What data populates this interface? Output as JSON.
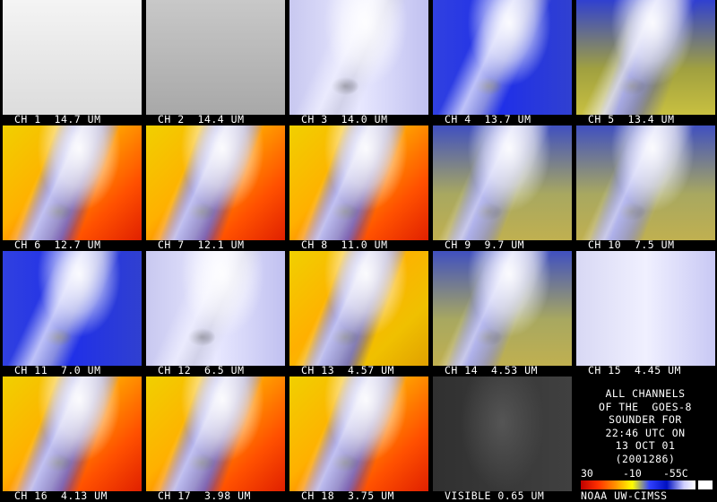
{
  "panels": [
    {
      "label": "CH 1  14.7 UM"
    },
    {
      "label": "CH 2  14.4 UM"
    },
    {
      "label": "CH 3  14.0 UM"
    },
    {
      "label": "CH 4  13.7 UM"
    },
    {
      "label": "CH 5  13.4 UM"
    },
    {
      "label": "CH 6  12.7 UM"
    },
    {
      "label": "CH 7  12.1 UM"
    },
    {
      "label": "CH 8  11.0 UM"
    },
    {
      "label": "CH 9  9.7 UM"
    },
    {
      "label": "CH 10  7.5 UM"
    },
    {
      "label": "CH 11  7.0 UM"
    },
    {
      "label": "CH 12  6.5 UM"
    },
    {
      "label": "CH 13  4.57 UM"
    },
    {
      "label": "CH 14  4.53 UM"
    },
    {
      "label": "CH 15  4.45 UM"
    },
    {
      "label": "CH 16  4.13 UM"
    },
    {
      "label": "CH 17  3.98 UM"
    },
    {
      "label": "CH 18  3.75 UM"
    },
    {
      "label": "VISIBLE 0.65 UM"
    }
  ],
  "info": {
    "lines": [
      "ALL CHANNELS",
      "OF THE  GOES-8",
      "SOUNDER FOR",
      "22:46 UTC ON",
      "13 OCT 01",
      "(2001286)"
    ]
  },
  "legend": {
    "scale": [
      "30",
      "-10",
      "-55C"
    ],
    "credit": "NOAA UW-CIMSS"
  }
}
